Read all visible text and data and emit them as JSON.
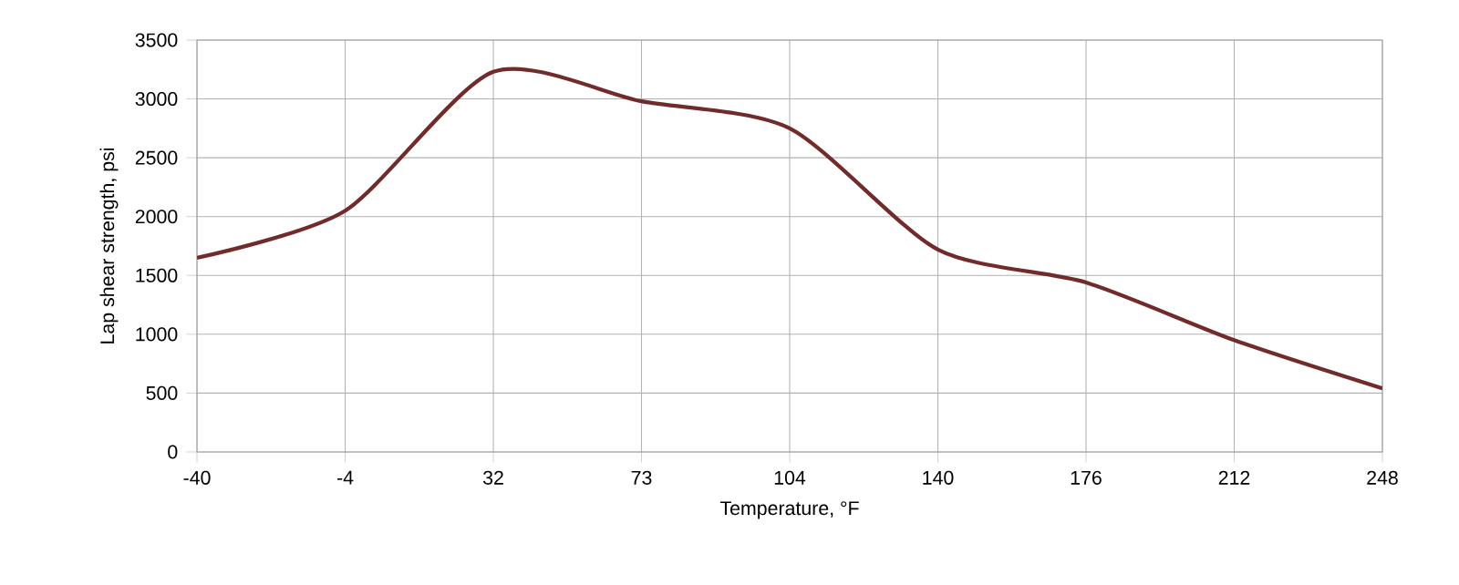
{
  "chart_data": {
    "type": "line",
    "xlabel": "Temperature, °F",
    "ylabel": "Lap shear strength, psi",
    "categories": [
      "-40",
      "-4",
      "32",
      "73",
      "104",
      "140",
      "176",
      "212",
      "248"
    ],
    "series": [
      {
        "color": "#722b2b",
        "values": [
          1650,
          2050,
          3230,
          2980,
          2750,
          1720,
          1440,
          950,
          540
        ]
      }
    ],
    "ylim": [
      0,
      3500
    ],
    "yticks": [
      0,
      500,
      1000,
      1500,
      2000,
      2500,
      3000,
      3500
    ],
    "grid": true,
    "marker": "none",
    "line_style": "solid"
  }
}
